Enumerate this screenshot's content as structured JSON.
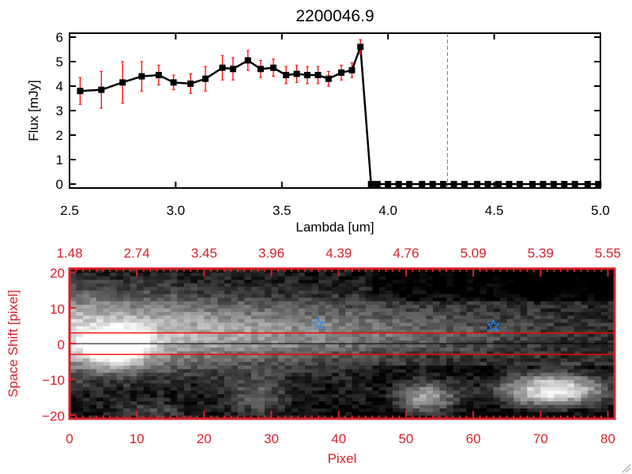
{
  "chart_data": [
    {
      "type": "line",
      "title": "2200046.9",
      "xlabel": "Lambda [um]",
      "ylabel": "Flux [mJy]",
      "xlim": [
        2.5,
        5.0
      ],
      "ylim": [
        0,
        6.2
      ],
      "xticks": [
        "2.5",
        "3.0",
        "3.5",
        "4.0",
        "4.5",
        "5.0"
      ],
      "xtick_values": [
        2.5,
        3.0,
        3.5,
        4.0,
        4.5,
        5.0
      ],
      "yticks": [
        "0",
        "1",
        "2",
        "3",
        "4",
        "5",
        "6"
      ],
      "ytick_values": [
        0,
        1,
        2,
        3,
        4,
        5,
        6
      ],
      "series": [
        {
          "name": "flux",
          "color": "#000000",
          "error_color": "#ff0000",
          "x": [
            2.55,
            2.65,
            2.75,
            2.84,
            2.92,
            2.99,
            3.07,
            3.14,
            3.22,
            3.27,
            3.34,
            3.4,
            3.46,
            3.52,
            3.57,
            3.62,
            3.67,
            3.72,
            3.78,
            3.83,
            3.87,
            3.92,
            3.95,
            4.0,
            4.05,
            4.1,
            4.16,
            4.21,
            4.26,
            4.31,
            4.36,
            4.42,
            4.47,
            4.52,
            4.57,
            4.62,
            4.68,
            4.73,
            4.78,
            4.83,
            4.88,
            4.94,
            4.99
          ],
          "y": [
            3.8,
            3.85,
            4.15,
            4.4,
            4.45,
            4.15,
            4.1,
            4.3,
            4.75,
            4.7,
            5.05,
            4.7,
            4.75,
            4.45,
            4.5,
            4.45,
            4.45,
            4.3,
            4.55,
            4.65,
            5.6,
            0,
            0,
            0,
            0,
            0,
            0,
            0,
            0,
            0,
            0,
            0,
            0,
            0,
            0,
            0,
            0,
            0,
            0,
            0,
            0,
            0,
            0
          ],
          "yerr": [
            0.55,
            0.75,
            0.85,
            0.6,
            0.4,
            0.3,
            0.4,
            0.5,
            0.5,
            0.45,
            0.4,
            0.35,
            0.35,
            0.35,
            0.35,
            0.35,
            0.35,
            0.3,
            0.3,
            0.3,
            0.3,
            0,
            0,
            0,
            0,
            0,
            0,
            0,
            0,
            0,
            0,
            0,
            0,
            0,
            0,
            0,
            0,
            0,
            0,
            0,
            0,
            0,
            0
          ]
        }
      ],
      "vline": {
        "x": 4.28,
        "color": "#1e90ff",
        "style": "dashed"
      },
      "hline": {
        "y": 0,
        "xrange": [
          3.95,
          5.0
        ],
        "color": "#ff0000",
        "style": "dashed"
      }
    },
    {
      "type": "heatmap",
      "xlabel": "Pixel",
      "ylabel": "Space Shift [pixel]",
      "xlim": [
        0,
        81
      ],
      "ylim": [
        -21,
        21
      ],
      "xticks": [
        "0",
        "10",
        "20",
        "30",
        "40",
        "50",
        "60",
        "70",
        "80"
      ],
      "xtick_values": [
        0,
        10,
        20,
        30,
        40,
        50,
        60,
        70,
        80
      ],
      "yticks": [
        "20",
        "10",
        "0",
        "−10",
        "−20"
      ],
      "ytick_values": [
        20,
        10,
        0,
        -10,
        -20
      ],
      "top_axis_label_values": [
        "1.48",
        "2.74",
        "3.45",
        "3.96",
        "4.39",
        "4.76",
        "5.09",
        "5.39",
        "5.55"
      ],
      "axis_color": "#d8202a",
      "hlines_red": [
        3,
        -3
      ],
      "hline_black": 0,
      "stars": [
        {
          "x": 37,
          "y": 5.5
        },
        {
          "x": 63,
          "y": 5
        }
      ],
      "star_color": "#1e90ff",
      "colormap": "grayscale"
    }
  ]
}
